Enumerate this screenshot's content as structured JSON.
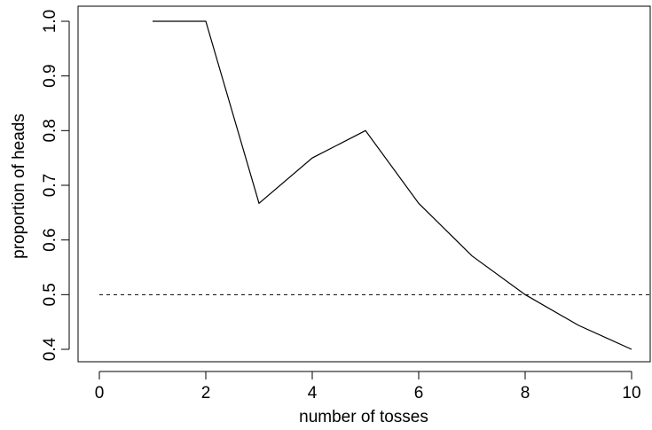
{
  "chart_data": {
    "type": "line",
    "title": "",
    "xlabel": "number of tosses",
    "ylabel": "proportion of heads",
    "xlim": [
      0,
      10
    ],
    "ylim": [
      0.4,
      1.0
    ],
    "x_ticks": [
      0,
      2,
      4,
      6,
      8,
      10
    ],
    "x_tick_labels": [
      "0",
      "2",
      "4",
      "6",
      "8",
      "10"
    ],
    "y_ticks": [
      0.4,
      0.5,
      0.6,
      0.7,
      0.8,
      0.9,
      1.0
    ],
    "y_tick_labels": [
      "0.4",
      "0.5",
      "0.6",
      "0.7",
      "0.8",
      "0.9",
      "1.0"
    ],
    "grid": false,
    "series": [
      {
        "style": "solid",
        "color": "#000000",
        "x": [
          1,
          2,
          3,
          4,
          5,
          6,
          7,
          8,
          9,
          10
        ],
        "y": [
          1.0,
          1.0,
          0.667,
          0.75,
          0.8,
          0.667,
          0.571,
          0.5,
          0.444,
          0.4
        ]
      }
    ],
    "reference_lines": [
      {
        "orientation": "horizontal",
        "y": 0.5,
        "style": "dashed",
        "color": "#000000"
      }
    ]
  }
}
